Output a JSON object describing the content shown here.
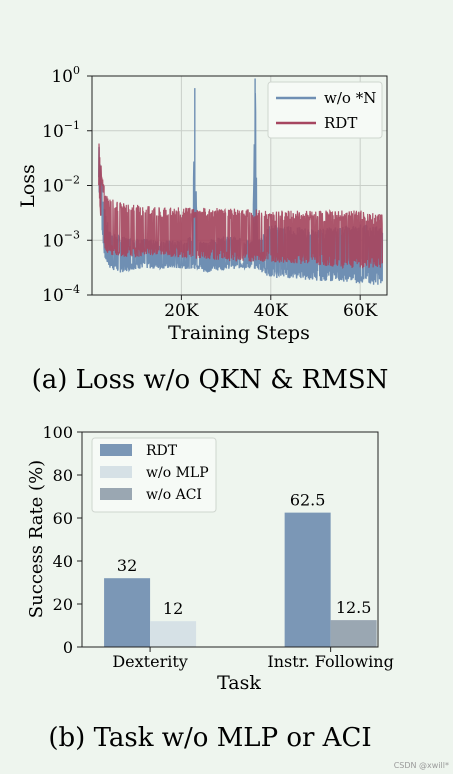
{
  "chart_data": [
    {
      "type": "line",
      "caption": "(a) Loss w/o QKN & RMSN",
      "xlabel": "Training Steps",
      "ylabel": "Loss",
      "yscale": "log",
      "ylim": [
        0.0001,
        1
      ],
      "xlim": [
        0,
        66000
      ],
      "xticks": [
        20000,
        40000,
        60000
      ],
      "xtick_labels": [
        "20K",
        "40K",
        "60K"
      ],
      "ytick_labels": [
        "10",
        "10",
        "10",
        "10",
        "10"
      ],
      "ytick_exponents": [
        "0",
        "−1",
        "−2",
        "−3",
        "−4"
      ],
      "grid": true,
      "legend_position": "top-right",
      "series": [
        {
          "name": "w/o *N",
          "color": "#6f8fb3",
          "x": [
            1500,
            2000,
            2500,
            3000,
            4000,
            6000,
            10000,
            15000,
            20000,
            22500,
            23000,
            23500,
            25000,
            30000,
            36000,
            36500,
            37000,
            40000,
            45000,
            50000,
            55000,
            60000,
            65000
          ],
          "band_high": [
            0.09,
            0.02,
            0.006,
            0.003,
            0.0015,
            0.0012,
            0.0011,
            0.001,
            0.001,
            0.0012,
            0.6,
            0.001,
            0.001,
            0.0012,
            0.001,
            0.9,
            0.001,
            0.002,
            0.0018,
            0.0016,
            0.0018,
            0.002,
            0.0018
          ],
          "band_low": [
            0.009,
            0.003,
            0.0008,
            0.0004,
            0.0003,
            0.00025,
            0.0003,
            0.0003,
            0.0003,
            0.0003,
            0.0003,
            0.0003,
            0.00025,
            0.0003,
            0.0003,
            0.0003,
            0.0003,
            0.0002,
            0.0002,
            0.00018,
            0.00018,
            0.00016,
            0.00015
          ]
        },
        {
          "name": "RDT",
          "color": "#a64660",
          "x": [
            1500,
            2000,
            2500,
            3000,
            4000,
            6000,
            10000,
            15000,
            20000,
            25000,
            30000,
            35000,
            40000,
            45000,
            50000,
            55000,
            60000,
            65000
          ],
          "band_high": [
            0.08,
            0.025,
            0.012,
            0.008,
            0.006,
            0.005,
            0.0045,
            0.004,
            0.004,
            0.004,
            0.0038,
            0.0038,
            0.0035,
            0.0035,
            0.0035,
            0.0035,
            0.0035,
            0.003
          ],
          "band_low": [
            0.01,
            0.002,
            0.0009,
            0.0006,
            0.00055,
            0.0005,
            0.0005,
            0.0005,
            0.00048,
            0.00045,
            0.00042,
            0.0004,
            0.0004,
            0.00038,
            0.00035,
            0.00032,
            0.0003,
            0.0003
          ]
        }
      ]
    },
    {
      "type": "bar",
      "caption": "(b) Task w/o MLP or ACI",
      "xlabel": "Task",
      "ylabel": "Success Rate (%)",
      "ylim": [
        0,
        100
      ],
      "yticks": [
        "0",
        "20",
        "40",
        "60",
        "80",
        "100"
      ],
      "categories": [
        "Dexterity",
        "Instr. Following"
      ],
      "legend_position": "top-left",
      "series": [
        {
          "name": "RDT",
          "color": "#7b97b6",
          "values": [
            32,
            62.5
          ],
          "labels": [
            "32",
            "62.5"
          ]
        },
        {
          "name": "w/o MLP",
          "color": "#d6e1e6",
          "values": [
            12,
            0
          ],
          "labels": [
            "12",
            ""
          ]
        },
        {
          "name": "w/o ACI",
          "color": "#9aa7b2",
          "values": [
            0,
            12.5
          ],
          "labels": [
            "",
            "12.5"
          ]
        }
      ]
    }
  ],
  "watermark": "CSDN @xwill*"
}
